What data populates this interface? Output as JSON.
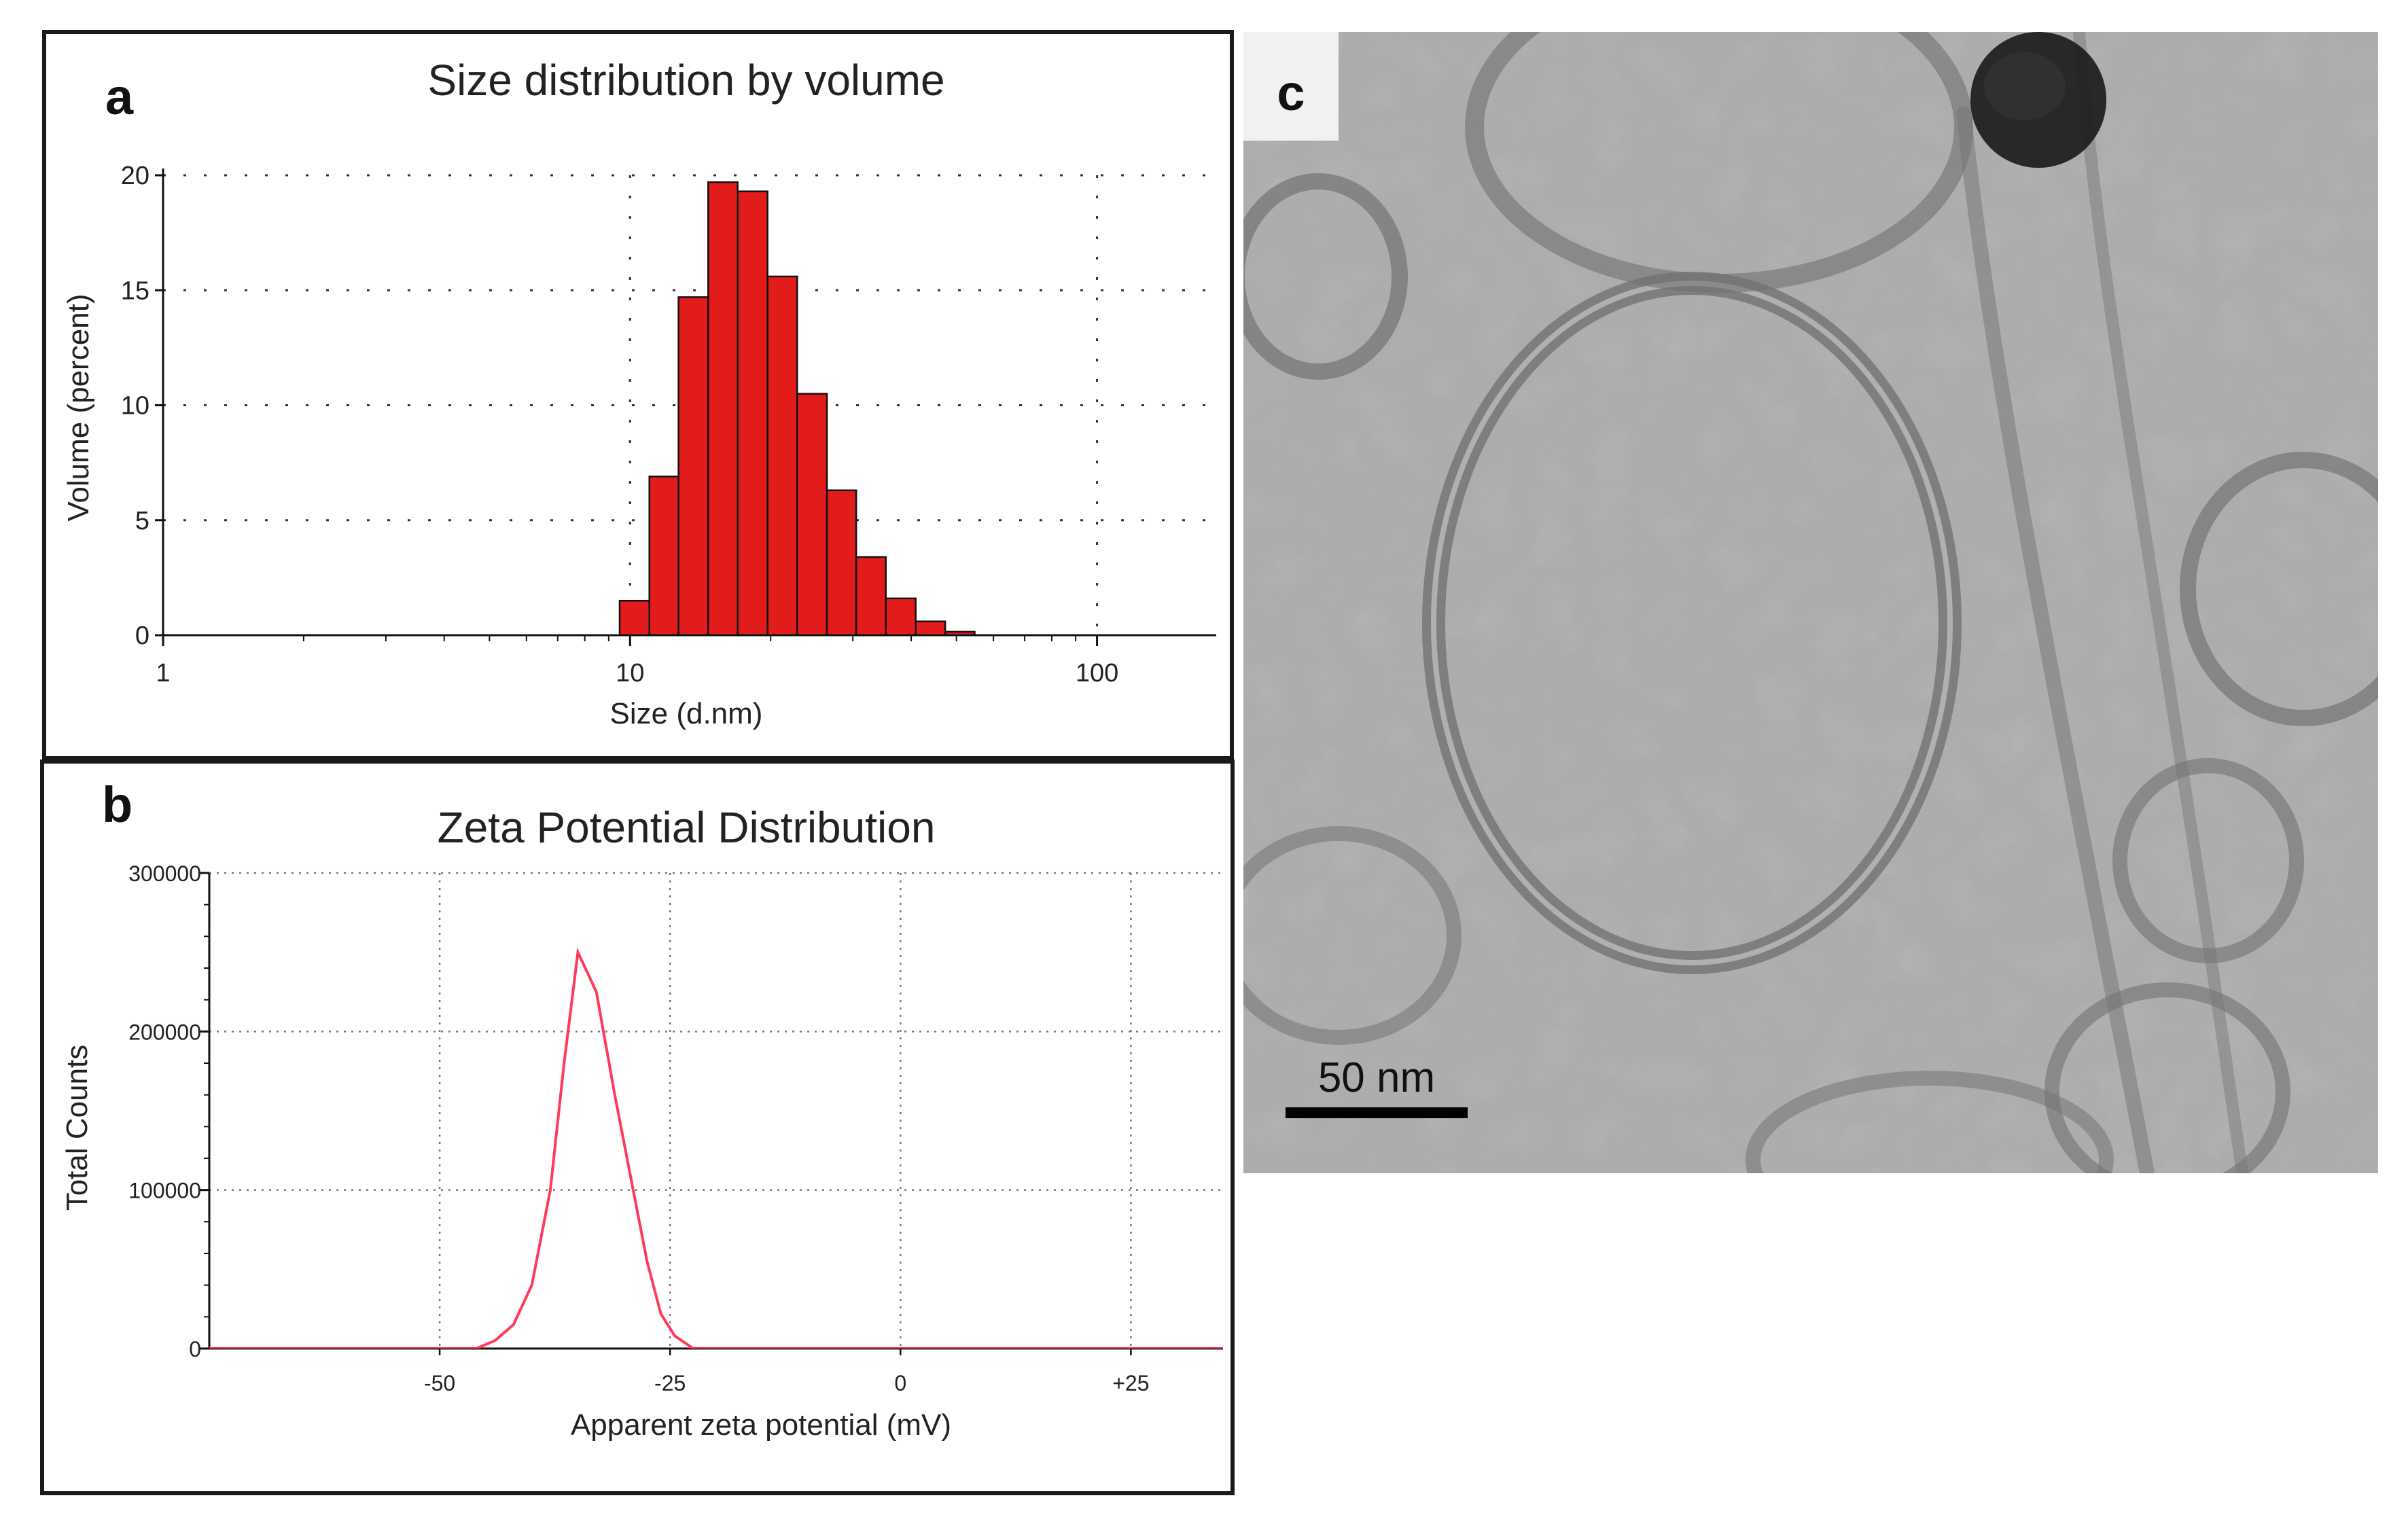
{
  "panel_a": {
    "letter": "a",
    "chart_data": {
      "type": "bar",
      "title": "Size distribution by volume",
      "xlabel": "Size (d.nm)",
      "ylabel": "Volume (percent)",
      "xscale": "log",
      "xlim": [
        1,
        180
      ],
      "ylim": [
        0,
        20
      ],
      "x_ticks": [
        1,
        10,
        100
      ],
      "x_tick_labels": [
        "1",
        "10",
        "100"
      ],
      "y_ticks": [
        0,
        5,
        10,
        15,
        20
      ],
      "y_tick_labels": [
        "0",
        "5",
        "10",
        "15",
        "20"
      ],
      "grid": true,
      "color": "#e21b1b",
      "bins": [
        {
          "from": 9.5,
          "to": 11.0,
          "value": 1.5
        },
        {
          "from": 11.0,
          "to": 12.7,
          "value": 6.9
        },
        {
          "from": 12.7,
          "to": 14.7,
          "value": 14.7
        },
        {
          "from": 14.7,
          "to": 17.0,
          "value": 19.7
        },
        {
          "from": 17.0,
          "to": 19.7,
          "value": 19.3
        },
        {
          "from": 19.7,
          "to": 22.8,
          "value": 15.6
        },
        {
          "from": 22.8,
          "to": 26.4,
          "value": 10.5
        },
        {
          "from": 26.4,
          "to": 30.5,
          "value": 6.3
        },
        {
          "from": 30.5,
          "to": 35.3,
          "value": 3.4
        },
        {
          "from": 35.3,
          "to": 40.9,
          "value": 1.6
        },
        {
          "from": 40.9,
          "to": 47.3,
          "value": 0.6
        },
        {
          "from": 47.3,
          "to": 54.7,
          "value": 0.15
        }
      ]
    }
  },
  "panel_b": {
    "letter": "b",
    "chart_data": {
      "type": "line",
      "title": "Zeta Potential Distribution",
      "xlabel": "Apparent zeta potential (mV)",
      "ylabel": "Total Counts",
      "xlim": [
        -75,
        35
      ],
      "ylim": [
        0,
        300000
      ],
      "x_ticks": [
        -50,
        -25,
        0,
        25
      ],
      "x_tick_labels": [
        "-50",
        "-25",
        "0",
        "+25"
      ],
      "y_ticks": [
        0,
        100000,
        200000,
        300000
      ],
      "y_tick_labels": [
        "0",
        "100000",
        "200000",
        "300000"
      ],
      "grid": true,
      "color": "#ff3a5a",
      "series": [
        {
          "name": "Total Counts",
          "x": [
            -75,
            -46,
            -44,
            -42,
            -40,
            -38,
            -36.5,
            -35,
            -33,
            -31,
            -29,
            -27.5,
            -26,
            -24.5,
            -22.5,
            35
          ],
          "y": [
            0,
            0,
            5000,
            15000,
            40000,
            100000,
            180000,
            250000,
            225000,
            160000,
            100000,
            55000,
            22000,
            8000,
            0,
            0
          ]
        }
      ]
    }
  },
  "panel_c": {
    "letter": "c",
    "scale_bar_label": "50 nm",
    "image_icon": "cryo-tem-micrograph"
  }
}
